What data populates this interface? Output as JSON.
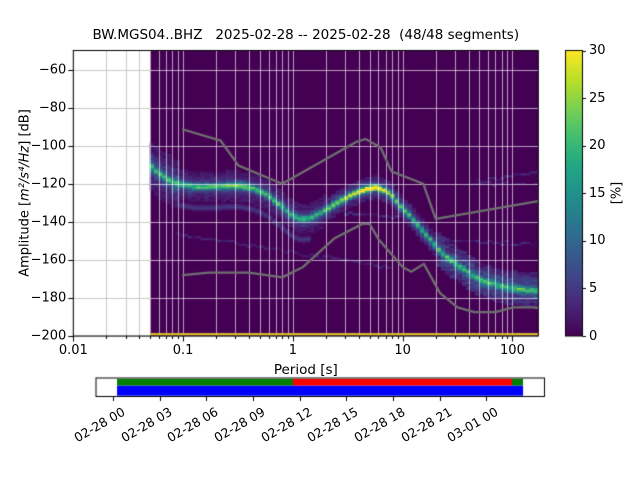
{
  "title": "BW.MGS04..BHZ   2025-02-28 -- 2025-02-28  (48/48 segments)",
  "axes": {
    "xlabel": "Period [s]",
    "ylabel_parts": {
      "pre": "Amplitude [",
      "math": "m²/s⁴/Hz",
      "post": "] [dB]"
    },
    "x_tick_labels": [
      "0.01",
      "0.1",
      "1",
      "10",
      "100"
    ],
    "y_tick_labels": [
      "−60",
      "−80",
      "−100",
      "−120",
      "−140",
      "−160",
      "−180",
      "−200"
    ]
  },
  "colorbar": {
    "label": "[%]",
    "tick_labels": [
      "0",
      "5",
      "10",
      "15",
      "20",
      "25",
      "30"
    ],
    "tick_values": [
      0,
      5,
      10,
      15,
      20,
      25,
      30
    ],
    "min": 0,
    "max": 30,
    "colormap": "viridis"
  },
  "chart_data": {
    "type": "heatmap",
    "title": "BW.MGS04..BHZ   2025-02-28 -- 2025-02-28  (48/48 segments)",
    "xlabel": "Period [s]",
    "ylabel": "Amplitude [m²/s⁴/Hz] [dB]",
    "xscale": "log",
    "xlim": [
      0.01,
      172
    ],
    "ylim": [
      -200,
      -50
    ],
    "x_major_ticks": [
      0.01,
      0.1,
      1,
      10,
      100
    ],
    "y_ticks": [
      -60,
      -80,
      -100,
      -120,
      -140,
      -160,
      -180,
      -200
    ],
    "grid": true,
    "colorbar": {
      "label": "[%]",
      "min": 0,
      "max": 30,
      "ticks": [
        0,
        5,
        10,
        15,
        20,
        25,
        30
      ],
      "colormap": "viridis"
    },
    "histogram_background": "#440154",
    "data_period_range": [
      0.05,
      172
    ],
    "psd_mode": {
      "periods": [
        0.05,
        0.062,
        0.08,
        0.1,
        0.13,
        0.18,
        0.25,
        0.33,
        0.45,
        0.6,
        0.8,
        1.0,
        1.2,
        1.5,
        1.9,
        2.6,
        3.5,
        4.5,
        5.6,
        7.0,
        8.2,
        10.0,
        11.7,
        14.0,
        17.9,
        23.5,
        33.5,
        51.0,
        77.0,
        118.0,
        172.0
      ],
      "db": [
        -110,
        -115,
        -119,
        -120.5,
        -121.5,
        -121.5,
        -121,
        -121,
        -122.5,
        -126,
        -132,
        -136.5,
        -138.5,
        -137.5,
        -134.5,
        -129.5,
        -125.5,
        -123,
        -121.7,
        -123.5,
        -126.5,
        -133,
        -136.5,
        -142,
        -149,
        -157,
        -163.5,
        -170.5,
        -173.5,
        -175.5,
        -176
      ],
      "percent": [
        15,
        13,
        12,
        13,
        14,
        15,
        16,
        18,
        15,
        17,
        14,
        13,
        15,
        14,
        16,
        18,
        24,
        28,
        29,
        24,
        18,
        15,
        14,
        13,
        13,
        14,
        12,
        11,
        12,
        14,
        13
      ]
    },
    "secondary_band": {
      "p": [
        0.095,
        1.4
      ],
      "offset_db": -11,
      "percent": 5
    },
    "streaks": [
      {
        "p": [
          0.084,
          8
        ],
        "db": [
          -146,
          -164
        ],
        "percent": 2.2
      },
      {
        "p": [
          25,
          172
        ],
        "db": [
          -150,
          -151.5
        ],
        "percent": 2.5
      },
      {
        "p": [
          45,
          172
        ],
        "db": [
          -119,
          -113.5
        ],
        "percent": 2.2
      },
      {
        "p": [
          40,
          172
        ],
        "db": [
          -120.5,
          -119.5
        ],
        "percent": 1.8
      },
      {
        "p": [
          3,
          9
        ],
        "db": [
          -135,
          -137.5
        ],
        "percent": 3.0
      }
    ],
    "baseline_row": {
      "db": -200,
      "percent": 26,
      "color": "#e2c32e"
    },
    "noise_models": {
      "name": "Peterson NHNM/NLNM",
      "color": "#6f6f6f",
      "nhnm": [
        [
          0.1,
          -91.5
        ],
        [
          0.22,
          -97.4
        ],
        [
          0.32,
          -110.5
        ],
        [
          0.8,
          -120.0
        ],
        [
          3.8,
          -98.0
        ],
        [
          4.6,
          -96.5
        ],
        [
          6.3,
          -101.0
        ],
        [
          7.9,
          -113.5
        ],
        [
          15.4,
          -120.0
        ],
        [
          20.0,
          -138.5
        ],
        [
          172.0,
          -129.1
        ]
      ],
      "nlnm": [
        [
          0.1,
          -168.0
        ],
        [
          0.17,
          -166.7
        ],
        [
          0.4,
          -166.7
        ],
        [
          0.8,
          -169.2
        ],
        [
          1.24,
          -163.7
        ],
        [
          2.4,
          -148.6
        ],
        [
          4.3,
          -141.1
        ],
        [
          5.0,
          -141.1
        ],
        [
          6.0,
          -149.0
        ],
        [
          10.0,
          -163.8
        ],
        [
          12.0,
          -166.2
        ],
        [
          15.6,
          -162.1
        ],
        [
          21.9,
          -177.5
        ],
        [
          31.6,
          -185.0
        ],
        [
          45.0,
          -187.5
        ],
        [
          70.0,
          -187.5
        ],
        [
          101.0,
          -185.0
        ],
        [
          154.0,
          -185.0
        ],
        [
          172.0,
          -185.3
        ]
      ]
    }
  },
  "timeline": {
    "labels": [
      "02-28 00",
      "02-28 03",
      "02-28 06",
      "02-28 09",
      "02-28 12",
      "02-28 15",
      "02-28 18",
      "02-28 21",
      "03-01 00"
    ],
    "tick_hours": [
      0,
      3,
      6,
      9,
      12,
      15,
      18,
      21,
      24
    ],
    "coverage": {
      "data_hours": [
        0.26,
        26.36
      ],
      "bottom_color": "#0000ff",
      "top_segments": [
        {
          "from": 0.26,
          "to": 11.57,
          "color": "#007f00"
        },
        {
          "from": 11.57,
          "to": 25.65,
          "color": "#ff0000"
        },
        {
          "from": 25.65,
          "to": 26.36,
          "color": "#007f00"
        }
      ]
    }
  }
}
